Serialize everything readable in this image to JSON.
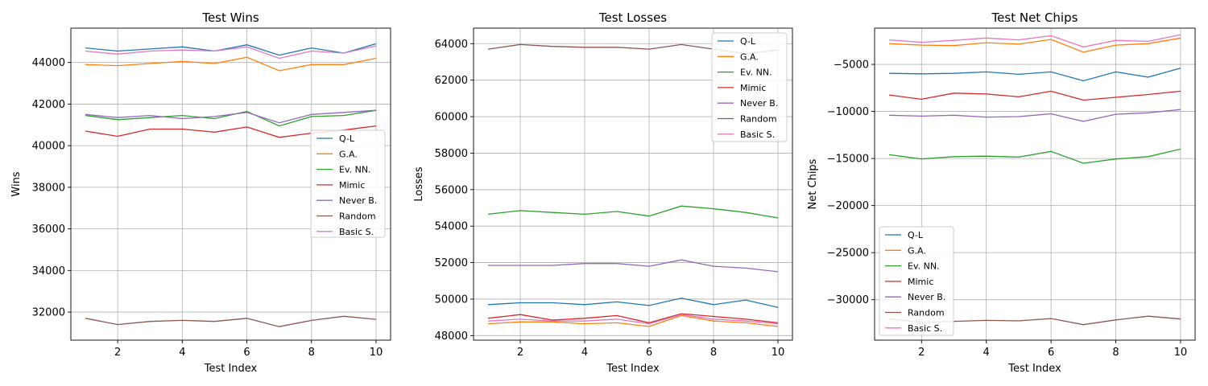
{
  "chart_data": [
    {
      "type": "line",
      "title": "Test Wins",
      "xlabel": "Test Index",
      "ylabel": "Wins",
      "x": [
        1,
        2,
        3,
        4,
        5,
        6,
        7,
        8,
        9,
        10
      ],
      "xlim": [
        0.55,
        10.45
      ],
      "ylim": [
        30650,
        45650
      ],
      "xticks": [
        2,
        4,
        6,
        8,
        10
      ],
      "yticks": [
        32000,
        34000,
        36000,
        38000,
        40000,
        42000,
        44000
      ],
      "grid": true,
      "legend_position": "center-right",
      "series": [
        {
          "name": "Q-L",
          "color": "#1f77b4",
          "values": [
            44700,
            44550,
            44650,
            44750,
            44550,
            44850,
            44350,
            44700,
            44450,
            44900
          ]
        },
        {
          "name": "G.A.",
          "color": "#ff7f0e",
          "values": [
            43900,
            43850,
            43950,
            44050,
            43950,
            44250,
            43600,
            43900,
            43900,
            44200
          ]
        },
        {
          "name": "Ev. NN.",
          "color": "#2ca02c",
          "values": [
            41450,
            41250,
            41350,
            41450,
            41300,
            41650,
            40950,
            41400,
            41450,
            41700
          ]
        },
        {
          "name": "Mimic",
          "color": "#d62728",
          "values": [
            40700,
            40450,
            40800,
            40800,
            40650,
            40900,
            40400,
            40600,
            40750,
            40950
          ]
        },
        {
          "name": "Never B.",
          "color": "#9467bd",
          "values": [
            41500,
            41350,
            41450,
            41300,
            41400,
            41600,
            41100,
            41500,
            41600,
            41700
          ]
        },
        {
          "name": "Random",
          "color": "#8c564b",
          "values": [
            31700,
            31400,
            31550,
            31600,
            31550,
            31700,
            31300,
            31600,
            31800,
            31650
          ]
        },
        {
          "name": "Basic S.",
          "color": "#e377c2",
          "values": [
            44550,
            44400,
            44550,
            44600,
            44550,
            44750,
            44200,
            44550,
            44450,
            44800
          ]
        }
      ]
    },
    {
      "type": "line",
      "title": "Test Losses",
      "xlabel": "Test Index",
      "ylabel": "Losses",
      "x": [
        1,
        2,
        3,
        4,
        5,
        6,
        7,
        8,
        9,
        10
      ],
      "xlim": [
        0.55,
        10.45
      ],
      "ylim": [
        47750,
        64850
      ],
      "xticks": [
        2,
        4,
        6,
        8,
        10
      ],
      "yticks": [
        48000,
        50000,
        52000,
        54000,
        56000,
        58000,
        60000,
        62000,
        64000
      ],
      "grid": true,
      "legend_position": "top-right",
      "series": [
        {
          "name": "Q-L",
          "color": "#1f77b4",
          "values": [
            49700,
            49800,
            49800,
            49700,
            49850,
            49650,
            50050,
            49700,
            49950,
            49550
          ]
        },
        {
          "name": "G.A.",
          "color": "#ff7f0e",
          "values": [
            48650,
            48750,
            48750,
            48650,
            48700,
            48500,
            49100,
            48800,
            48700,
            48500
          ]
        },
        {
          "name": "Ev. NN.",
          "color": "#2ca02c",
          "values": [
            54650,
            54850,
            54750,
            54650,
            54800,
            54550,
            55100,
            54950,
            54750,
            54450
          ]
        },
        {
          "name": "Mimic",
          "color": "#d62728",
          "values": [
            48950,
            49150,
            48850,
            48950,
            49100,
            48700,
            49200,
            49050,
            48900,
            48700
          ]
        },
        {
          "name": "Never B.",
          "color": "#9467bd",
          "values": [
            51850,
            51850,
            51850,
            51950,
            51950,
            51800,
            52150,
            51800,
            51700,
            51500
          ]
        },
        {
          "name": "Random",
          "color": "#8c564b",
          "values": [
            63700,
            63950,
            63850,
            63800,
            63800,
            63700,
            63950,
            63700,
            63450,
            63650
          ]
        },
        {
          "name": "Basic S.",
          "color": "#e377c2",
          "values": [
            48800,
            48900,
            48800,
            48800,
            48900,
            48650,
            49150,
            48900,
            48800,
            48650
          ]
        }
      ]
    },
    {
      "type": "line",
      "title": "Test Net Chips",
      "xlabel": "Test Index",
      "ylabel": "Net Chips",
      "x": [
        1,
        2,
        3,
        4,
        5,
        6,
        7,
        8,
        9,
        10
      ],
      "xlim": [
        0.55,
        10.45
      ],
      "ylim": [
        -34300,
        -1150
      ],
      "xticks": [
        2,
        4,
        6,
        8,
        10
      ],
      "yticks": [
        -5000,
        -10000,
        -15000,
        -20000,
        -25000,
        -30000
      ],
      "grid": true,
      "legend_position": "lower-left",
      "series": [
        {
          "name": "Q-L",
          "color": "#1f77b4",
          "values": [
            -5950,
            -6000,
            -5950,
            -5800,
            -6050,
            -5800,
            -6750,
            -5800,
            -6350,
            -5400
          ]
        },
        {
          "name": "G.A.",
          "color": "#ff7f0e",
          "values": [
            -2800,
            -2950,
            -3000,
            -2700,
            -2850,
            -2350,
            -3700,
            -2950,
            -2800,
            -2200
          ]
        },
        {
          "name": "Ev. NN.",
          "color": "#2ca02c",
          "values": [
            -14600,
            -15050,
            -14800,
            -14750,
            -14850,
            -14250,
            -15500,
            -15050,
            -14800,
            -14000
          ]
        },
        {
          "name": "Mimic",
          "color": "#d62728",
          "values": [
            -8250,
            -8700,
            -8050,
            -8150,
            -8450,
            -7850,
            -8800,
            -8500,
            -8200,
            -7850
          ]
        },
        {
          "name": "Never B.",
          "color": "#9467bd",
          "values": [
            -10400,
            -10500,
            -10400,
            -10600,
            -10550,
            -10250,
            -11050,
            -10300,
            -10150,
            -9800
          ]
        },
        {
          "name": "Random",
          "color": "#8c564b",
          "values": [
            -32050,
            -32400,
            -32300,
            -32200,
            -32250,
            -32000,
            -32650,
            -32150,
            -31750,
            -32050
          ]
        },
        {
          "name": "Basic S.",
          "color": "#e377c2",
          "values": [
            -2400,
            -2650,
            -2450,
            -2200,
            -2400,
            -1950,
            -3150,
            -2450,
            -2550,
            -1850
          ]
        }
      ]
    }
  ]
}
